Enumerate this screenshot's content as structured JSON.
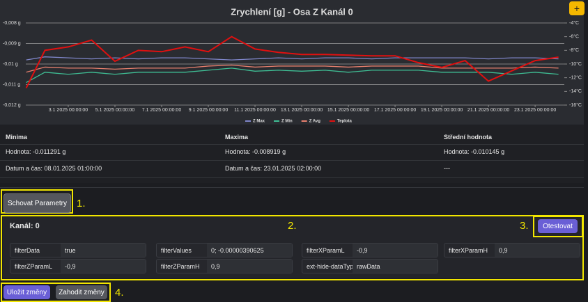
{
  "chart_data": {
    "type": "line",
    "title": "Zrychlení [g] - Osa Z Kanál 0",
    "x": [
      1.2,
      2,
      3,
      4,
      5,
      6,
      7,
      8,
      9,
      10,
      11,
      12,
      13,
      14,
      15,
      16,
      17,
      18,
      19,
      20,
      21,
      22,
      23,
      24
    ],
    "xlim": [
      1.18,
      24.25
    ],
    "xticks": [
      {
        "value": 3,
        "label": "3.1 2025 00:00:00"
      },
      {
        "value": 5,
        "label": "5.1 2025 00:00:00"
      },
      {
        "value": 7,
        "label": "7.1 2025 00:00:00"
      },
      {
        "value": 9,
        "label": "9.1 2025 00:00:00"
      },
      {
        "value": 11,
        "label": "11.1 2025 00:00:00"
      },
      {
        "value": 13,
        "label": "13.1 2025 00:00:00"
      },
      {
        "value": 15,
        "label": "15.1 2025 00:00:00"
      },
      {
        "value": 17,
        "label": "17.1 2025 00:00:00"
      },
      {
        "value": 19,
        "label": "19.1 2025 00:00:00"
      },
      {
        "value": 21,
        "label": "21.1 2025 00:00:00"
      },
      {
        "value": 23,
        "label": "23.1 2025 00:00:00"
      }
    ],
    "ylim": [
      -0.012,
      -0.008
    ],
    "yticks": [
      {
        "value": -0.008,
        "label": "-0,008 g"
      },
      {
        "value": -0.009,
        "label": "-0,009 g"
      },
      {
        "value": -0.01,
        "label": "-0,01 g"
      },
      {
        "value": -0.011,
        "label": "-0,011 g"
      },
      {
        "value": -0.012,
        "label": "-0,012 g"
      }
    ],
    "y2lim": [
      -16,
      -4
    ],
    "y2ticks": [
      {
        "value": -4,
        "label": "-4°C"
      },
      {
        "value": -6,
        "label": "-6°C"
      },
      {
        "value": -8,
        "label": "-8°C"
      },
      {
        "value": -10,
        "label": "-10°C"
      },
      {
        "value": -12,
        "label": "-12°C"
      },
      {
        "value": -14,
        "label": "-14°C"
      },
      {
        "value": -16,
        "label": "-16°C"
      }
    ],
    "grid": true,
    "series": [
      {
        "name": "Z Max",
        "color": "#7f86c9",
        "values": [
          -0.0098,
          -0.00965,
          -0.0097,
          -0.00975,
          -0.0097,
          -0.00975,
          -0.0097,
          -0.0097,
          -0.00975,
          -0.0098,
          -0.00975,
          -0.0097,
          -0.00975,
          -0.0097,
          -0.0097,
          -0.00975,
          -0.0097,
          -0.0097,
          -0.0097,
          -0.0097,
          -0.00975,
          -0.0097,
          -0.0097,
          -0.00975
        ]
      },
      {
        "name": "Z Min",
        "color": "#3fbf95",
        "values": [
          -0.0109,
          -0.0104,
          -0.0105,
          -0.0104,
          -0.0105,
          -0.0104,
          -0.0104,
          -0.0104,
          -0.0103,
          -0.0102,
          -0.01035,
          -0.0103,
          -0.01035,
          -0.0103,
          -0.0104,
          -0.0103,
          -0.0103,
          -0.0103,
          -0.0104,
          -0.0104,
          -0.0104,
          -0.0105,
          -0.0104,
          -0.0105
        ]
      },
      {
        "name": "Z Avg",
        "color": "#e8806e",
        "values": [
          -0.0104,
          -0.01015,
          -0.0102,
          -0.0102,
          -0.01025,
          -0.0102,
          -0.0102,
          -0.0102,
          -0.0101,
          -0.01005,
          -0.01015,
          -0.0101,
          -0.0101,
          -0.0101,
          -0.01015,
          -0.0101,
          -0.0101,
          -0.0101,
          -0.0102,
          -0.0102,
          -0.0102,
          -0.0102,
          -0.01015,
          -0.0102
        ]
      },
      {
        "name": "Teplota",
        "color": "#e01010",
        "axis": "y2",
        "values": [
          -13.5,
          -8,
          -7.5,
          -6.5,
          -9.6,
          -8,
          -8.2,
          -7.5,
          -8.2,
          -6,
          -7.8,
          -8.3,
          -8.6,
          -8.6,
          -8.7,
          -8.8,
          -8.8,
          -9.8,
          -10.5,
          -9.5,
          -12.5,
          -11,
          -9.5,
          -9
        ]
      }
    ]
  },
  "add_button": "+",
  "stats": {
    "headings": [
      "Minima",
      "Maxima",
      "Střední hodnota"
    ],
    "values": [
      "Hodnota: -0.011291 g",
      "Hodnota: -0.008919 g",
      "Hodnota: -0.010145 g"
    ],
    "dates": [
      "Datum a čas: 08.01.2025 01:00:00",
      "Datum a čas: 23.01.2025 02:00:00",
      "---"
    ]
  },
  "toggle_button": "Schovat Parametry",
  "markers": [
    "1.",
    "2.",
    "3.",
    "4."
  ],
  "channel": "Kanál: 0",
  "test_button": "Otestovat",
  "params": [
    {
      "label": "filterData",
      "value": "true"
    },
    {
      "label": "filterValues",
      "value": "0; -0.00000390625"
    },
    {
      "label": "filterXParamL",
      "value": "-0,9"
    },
    {
      "label": "filterXParamH",
      "value": "0,9"
    },
    {
      "label": "filterZParamL",
      "value": "-0,9"
    },
    {
      "label": "filterZParamH",
      "value": "0,9"
    },
    {
      "label": "ext-hide-dataType",
      "value": "rawData"
    }
  ],
  "save_button": "Uložit změny",
  "discard_button": "Zahodit změny"
}
